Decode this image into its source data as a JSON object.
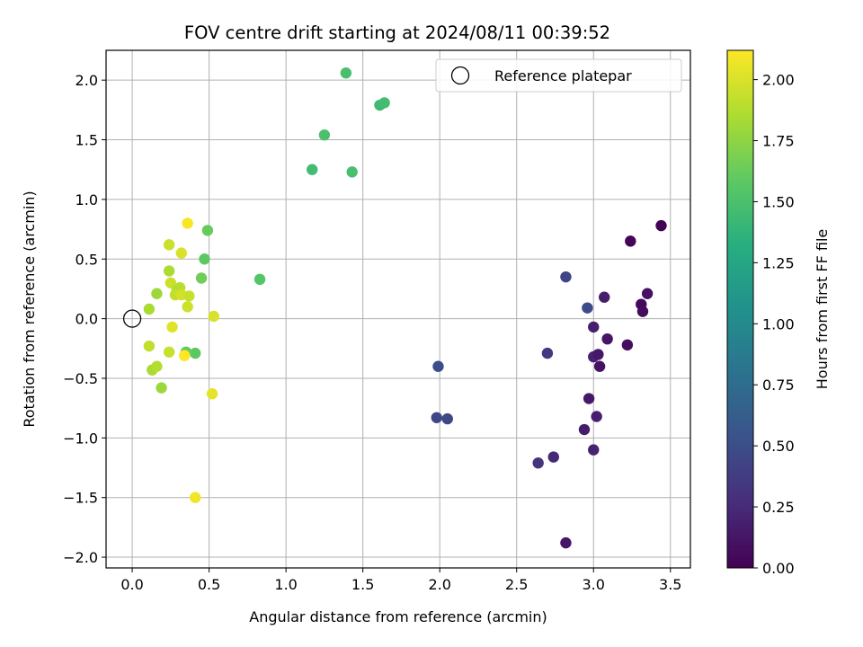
{
  "chart_data": {
    "type": "scatter",
    "title": "FOV centre drift starting at 2024/08/11 00:39:52",
    "xlabel": "Angular distance from reference (arcmin)",
    "ylabel": "Rotation from reference (arcmin)",
    "xlim": [
      -0.17,
      3.63
    ],
    "ylim": [
      -2.09,
      2.25
    ],
    "xticks": [
      "0.0",
      "0.5",
      "1.0",
      "1.5",
      "2.0",
      "2.5",
      "3.0",
      "3.5"
    ],
    "xtick_values": [
      0.0,
      0.5,
      1.0,
      1.5,
      2.0,
      2.5,
      3.0,
      3.5
    ],
    "yticks": [
      "−2.0",
      "−1.5",
      "−1.0",
      "−0.5",
      "0.0",
      "0.5",
      "1.0",
      "1.5",
      "2.0"
    ],
    "ytick_values": [
      -2.0,
      -1.5,
      -1.0,
      -0.5,
      0.0,
      0.5,
      1.0,
      1.5,
      2.0
    ],
    "grid": true,
    "colormap": "viridis",
    "colorbar": {
      "label": "Hours from first FF file",
      "range": [
        0.0,
        2.12
      ],
      "ticks": [
        "0.00",
        "0.25",
        "0.50",
        "0.75",
        "1.00",
        "1.25",
        "1.50",
        "1.75",
        "2.00"
      ],
      "tick_values": [
        0.0,
        0.25,
        0.5,
        0.75,
        1.0,
        1.25,
        1.5,
        1.75,
        2.0
      ]
    },
    "legend": {
      "position": "upper-right",
      "entries": [
        "Reference platepar"
      ]
    },
    "reference_point": {
      "x": 0.0,
      "y": 0.0
    },
    "points": [
      {
        "x": 3.44,
        "y": 0.78,
        "c": 0.0
      },
      {
        "x": 3.24,
        "y": 0.65,
        "c": 0.02
      },
      {
        "x": 3.35,
        "y": 0.21,
        "c": 0.1
      },
      {
        "x": 3.31,
        "y": 0.12,
        "c": 0.04
      },
      {
        "x": 3.32,
        "y": 0.06,
        "c": 0.06
      },
      {
        "x": 3.07,
        "y": 0.18,
        "c": 0.16
      },
      {
        "x": 3.22,
        "y": -0.22,
        "c": 0.08
      },
      {
        "x": 3.09,
        "y": -0.17,
        "c": 0.12
      },
      {
        "x": 3.0,
        "y": -0.07,
        "c": 0.18
      },
      {
        "x": 3.0,
        "y": -0.32,
        "c": 0.2
      },
      {
        "x": 3.03,
        "y": -0.3,
        "c": 0.14
      },
      {
        "x": 3.04,
        "y": -0.4,
        "c": 0.1
      },
      {
        "x": 2.97,
        "y": -0.67,
        "c": 0.14
      },
      {
        "x": 3.02,
        "y": -0.82,
        "c": 0.18
      },
      {
        "x": 2.94,
        "y": -0.93,
        "c": 0.16
      },
      {
        "x": 3.0,
        "y": -1.1,
        "c": 0.2
      },
      {
        "x": 2.74,
        "y": -1.16,
        "c": 0.24
      },
      {
        "x": 2.64,
        "y": -1.21,
        "c": 0.3
      },
      {
        "x": 2.82,
        "y": -1.88,
        "c": 0.12
      },
      {
        "x": 2.7,
        "y": -0.29,
        "c": 0.34
      },
      {
        "x": 2.82,
        "y": 0.35,
        "c": 0.44
      },
      {
        "x": 2.96,
        "y": 0.09,
        "c": 0.48
      },
      {
        "x": 1.99,
        "y": -0.4,
        "c": 0.5
      },
      {
        "x": 1.98,
        "y": -0.83,
        "c": 0.44
      },
      {
        "x": 2.05,
        "y": -0.84,
        "c": 0.46
      },
      {
        "x": 1.39,
        "y": 2.06,
        "c": 1.48
      },
      {
        "x": 1.61,
        "y": 1.79,
        "c": 1.44
      },
      {
        "x": 1.64,
        "y": 1.81,
        "c": 1.46
      },
      {
        "x": 1.25,
        "y": 1.54,
        "c": 1.5
      },
      {
        "x": 1.17,
        "y": 1.25,
        "c": 1.46
      },
      {
        "x": 1.43,
        "y": 1.23,
        "c": 1.48
      },
      {
        "x": 0.83,
        "y": 0.33,
        "c": 1.55
      },
      {
        "x": 0.49,
        "y": 0.74,
        "c": 1.62
      },
      {
        "x": 0.47,
        "y": 0.5,
        "c": 1.58
      },
      {
        "x": 0.45,
        "y": 0.34,
        "c": 1.65
      },
      {
        "x": 0.41,
        "y": -0.29,
        "c": 1.58
      },
      {
        "x": 0.35,
        "y": -0.28,
        "c": 1.62
      },
      {
        "x": 0.36,
        "y": 0.8,
        "c": 2.1
      },
      {
        "x": 0.24,
        "y": 0.62,
        "c": 1.95
      },
      {
        "x": 0.32,
        "y": 0.55,
        "c": 2.0
      },
      {
        "x": 0.24,
        "y": 0.4,
        "c": 1.85
      },
      {
        "x": 0.25,
        "y": 0.3,
        "c": 1.95
      },
      {
        "x": 0.31,
        "y": 0.26,
        "c": 1.9
      },
      {
        "x": 0.29,
        "y": 0.24,
        "c": 1.88
      },
      {
        "x": 0.28,
        "y": 0.2,
        "c": 1.92
      },
      {
        "x": 0.32,
        "y": 0.2,
        "c": 1.98
      },
      {
        "x": 0.37,
        "y": 0.19,
        "c": 1.94
      },
      {
        "x": 0.16,
        "y": 0.21,
        "c": 1.8
      },
      {
        "x": 0.11,
        "y": 0.08,
        "c": 1.84
      },
      {
        "x": 0.36,
        "y": 0.1,
        "c": 1.96
      },
      {
        "x": 0.53,
        "y": 0.02,
        "c": 2.0
      },
      {
        "x": 0.26,
        "y": -0.07,
        "c": 2.02
      },
      {
        "x": 0.11,
        "y": -0.23,
        "c": 1.92
      },
      {
        "x": 0.24,
        "y": -0.28,
        "c": 1.94
      },
      {
        "x": 0.34,
        "y": -0.31,
        "c": 2.12
      },
      {
        "x": 0.13,
        "y": -0.43,
        "c": 1.84
      },
      {
        "x": 0.16,
        "y": -0.4,
        "c": 1.88
      },
      {
        "x": 0.19,
        "y": -0.58,
        "c": 1.8
      },
      {
        "x": 0.52,
        "y": -0.63,
        "c": 2.04
      },
      {
        "x": 0.41,
        "y": -1.5,
        "c": 2.08
      }
    ]
  }
}
